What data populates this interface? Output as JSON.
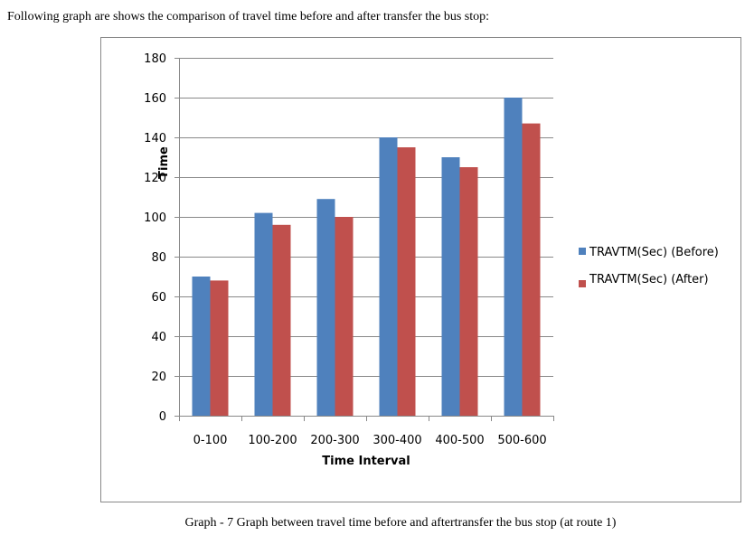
{
  "intro": "Following graph are shows the comparison of travel time before and after transfer the bus stop:",
  "chart_data": {
    "type": "bar",
    "xlabel": "Time Interval",
    "ylabel": "Time",
    "categories": [
      "0-100",
      "100-200",
      "200-300",
      "300-400",
      "400-500",
      "500-600"
    ],
    "series": [
      {
        "name": "TRAVTM(Sec) (Before)",
        "color": "#4f81bd",
        "values": [
          70,
          102,
          109,
          140,
          130,
          160
        ]
      },
      {
        "name": "TRAVTM(Sec) (After)",
        "color": "#c0504d",
        "values": [
          68,
          96,
          100,
          135,
          125,
          147
        ]
      }
    ],
    "ylim": [
      0,
      180
    ],
    "yticks": [
      0,
      20,
      40,
      60,
      80,
      100,
      120,
      140,
      160,
      180
    ],
    "grid": true,
    "legend": "right"
  },
  "caption": "Graph - 7 Graph between travel time before and aftertransfer the bus stop (at route 1)"
}
